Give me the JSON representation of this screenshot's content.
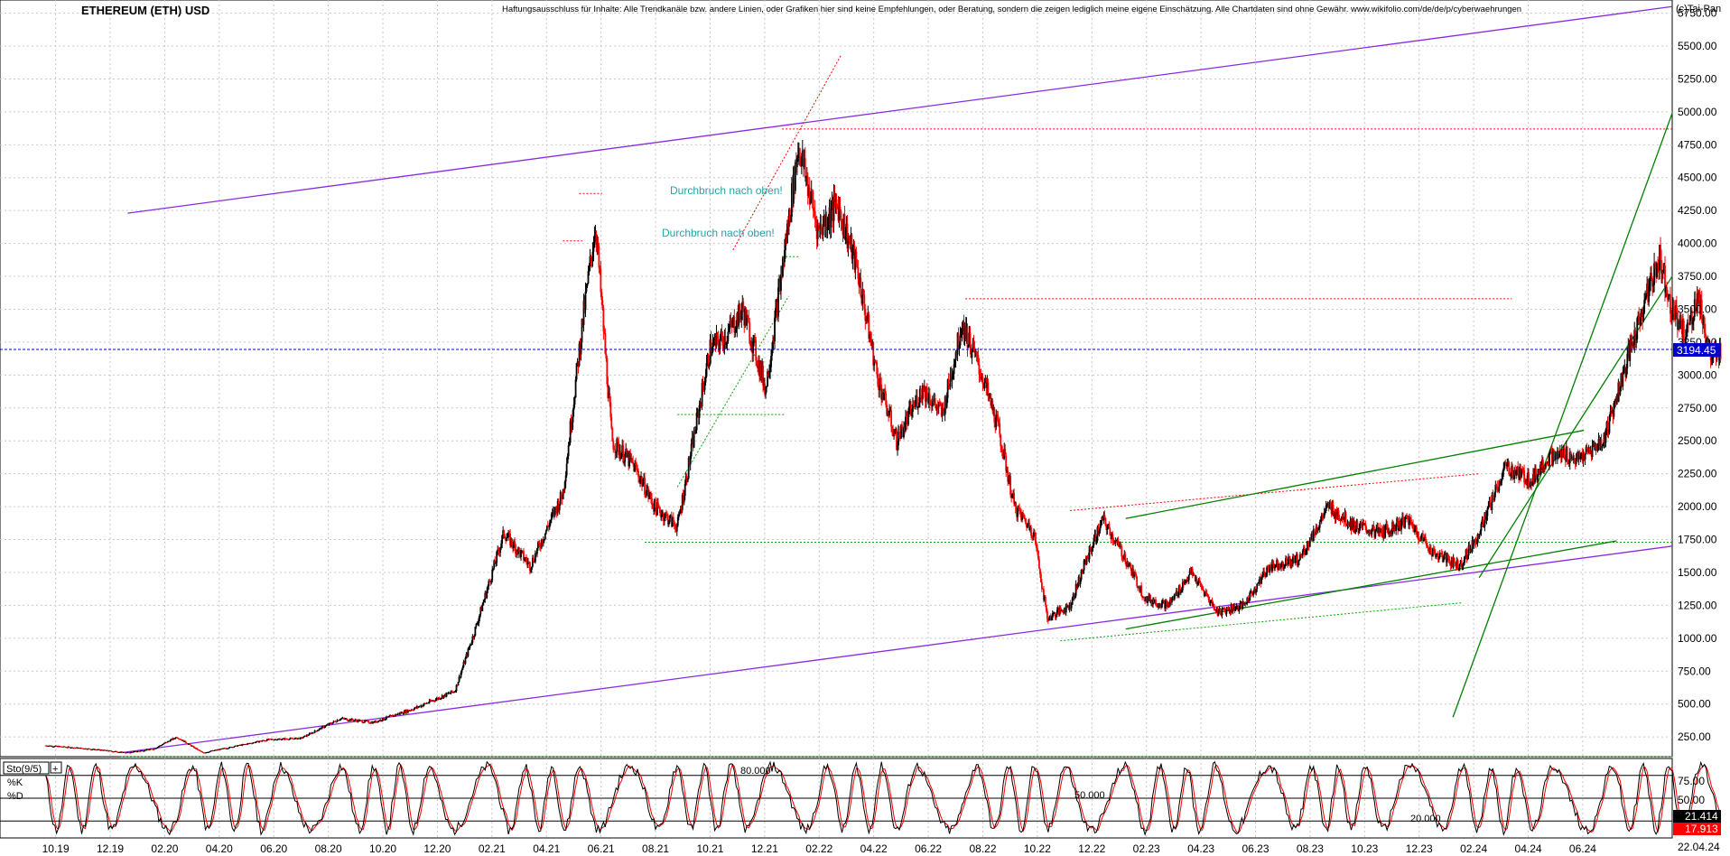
{
  "header": {
    "title": "ETHEREUM (ETH) USD",
    "disclaimer": "Haftungsausschluss für Inhalte: Alle Trendkanäle bzw. andere Linien, oder Grafiken hier sind keine Empfehlungen, oder Beratung, sondern die zeigen lediglich meine eigene Einschätzung. Alle Chartdaten sind ohne Gewähr. www.wikifolio.com/de/de/p/cyberwaehrungen",
    "copyright": "(c)Tai-Pan"
  },
  "colors": {
    "up": "#000000",
    "down": "#ff0000",
    "channel": "#8a2be2",
    "trend": "#008000",
    "current_line": "#0000cc",
    "badge": "#0000cc",
    "annotation": "#2aa0a8"
  },
  "annotations": [
    {
      "text": "Durchbruch nach oben!",
      "date": "2021.45",
      "price": 4370
    },
    {
      "text": "Durchbruch nach oben!",
      "date": "2021.40",
      "price": 4040
    }
  ],
  "current_price": {
    "label": "3194.45",
    "value": 3194.45
  },
  "stochastic": {
    "label": "Sto(9/5)",
    "k_label": "%K",
    "d_label": "%D",
    "k_value": "21.414",
    "d_value": "17.913",
    "level_80_label": "80.000",
    "level_50_label": "50.000",
    "level_20_label": "20.000",
    "y_ticks": [
      "75.00",
      "50.00"
    ]
  },
  "x_axis": {
    "last_date_label": "22.04.24",
    "ticks": [
      "10.19",
      "12.19",
      "02.20",
      "04.20",
      "06.20",
      "08.20",
      "10.20",
      "12.20",
      "02.21",
      "04.21",
      "06.21",
      "08.21",
      "10.21",
      "12.21",
      "02.22",
      "04.22",
      "06.22",
      "08.22",
      "10.22",
      "12.22",
      "02.23",
      "04.23",
      "06.23",
      "08.23",
      "10.23",
      "12.23",
      "02.24",
      "04.24",
      "06.24"
    ]
  },
  "chart_data": {
    "type": "candlestick",
    "title": "ETHEREUM (ETH) USD",
    "y_ticks": [
      250,
      500,
      750,
      1000,
      1250,
      1500,
      1750,
      2000,
      2250,
      2500,
      2750,
      3000,
      3250,
      3500,
      3750,
      4000,
      4250,
      4500,
      4750,
      5000,
      5250,
      5500,
      5750
    ],
    "ylim": [
      100,
      5850
    ],
    "xlim": [
      "2019-08",
      "2024-09"
    ],
    "price_path": [
      [
        "2019.72",
        185
      ],
      [
        "2019.85",
        160
      ],
      [
        "2019.97",
        130
      ],
      [
        "2020.05",
        160
      ],
      [
        "2020.12",
        250
      ],
      [
        "2020.20",
        130
      ],
      [
        "2020.30",
        180
      ],
      [
        "2020.40",
        230
      ],
      [
        "2020.50",
        240
      ],
      [
        "2020.62",
        390
      ],
      [
        "2020.72",
        360
      ],
      [
        "2020.85",
        470
      ],
      [
        "2020.97",
        600
      ],
      [
        "2021.03",
        1050
      ],
      [
        "2021.12",
        1800
      ],
      [
        "2021.20",
        1550
      ],
      [
        "2021.30",
        2100
      ],
      [
        "2021.36",
        3400
      ],
      [
        "2021.40",
        4150
      ],
      [
        "2021.45",
        2500
      ],
      [
        "2021.52",
        2300
      ],
      [
        "2021.58",
        2000
      ],
      [
        "2021.65",
        1850
      ],
      [
        "2021.75",
        3200
      ],
      [
        "2021.80",
        3300
      ],
      [
        "2021.85",
        3500
      ],
      [
        "2021.92",
        2900
      ],
      [
        "2021.97",
        3800
      ],
      [
        "2022.02",
        4750
      ],
      [
        "2022.08",
        4100
      ],
      [
        "2022.14",
        4300
      ],
      [
        "2022.20",
        3800
      ],
      [
        "2022.26",
        3000
      ],
      [
        "2022.32",
        2500
      ],
      [
        "2022.40",
        2900
      ],
      [
        "2022.46",
        2700
      ],
      [
        "2022.52",
        3400
      ],
      [
        "2022.58",
        3000
      ],
      [
        "2022.63",
        2600
      ],
      [
        "2022.68",
        2000
      ],
      [
        "2022.74",
        1800
      ],
      [
        "2022.78",
        1150
      ],
      [
        "2022.85",
        1250
      ],
      [
        "2022.90",
        1600
      ],
      [
        "2022.95",
        1900
      ],
      [
        "2023.02",
        1600
      ],
      [
        "2023.08",
        1300
      ],
      [
        "2023.15",
        1250
      ],
      [
        "2023.22",
        1500
      ],
      [
        "2023.30",
        1200
      ],
      [
        "2023.38",
        1250
      ],
      [
        "2023.46",
        1550
      ],
      [
        "2023.55",
        1600
      ],
      [
        "2023.64",
        2000
      ],
      [
        "2023.72",
        1850
      ],
      [
        "2023.80",
        1800
      ],
      [
        "2023.88",
        1900
      ],
      [
        "2023.96",
        1650
      ],
      [
        "2024.04",
        1550
      ],
      [
        "2024.10",
        1800
      ],
      [
        "2024.18",
        2300
      ],
      [
        "2024.26",
        2200
      ],
      [
        "2024.30",
        2350
      ],
      [
        "2024.36",
        2400
      ],
      [
        "2024.40",
        2350
      ],
      [
        "2024.48",
        2500
      ],
      [
        "2024.54",
        3000
      ],
      [
        "2024.60",
        3500
      ],
      [
        "2024.65",
        3900
      ],
      [
        "2024.69",
        3500
      ],
      [
        "2024.73",
        3300
      ],
      [
        "2024.77",
        3600
      ],
      [
        "2024.81",
        3100
      ],
      [
        "2024.84",
        3194.45
      ]
    ]
  }
}
